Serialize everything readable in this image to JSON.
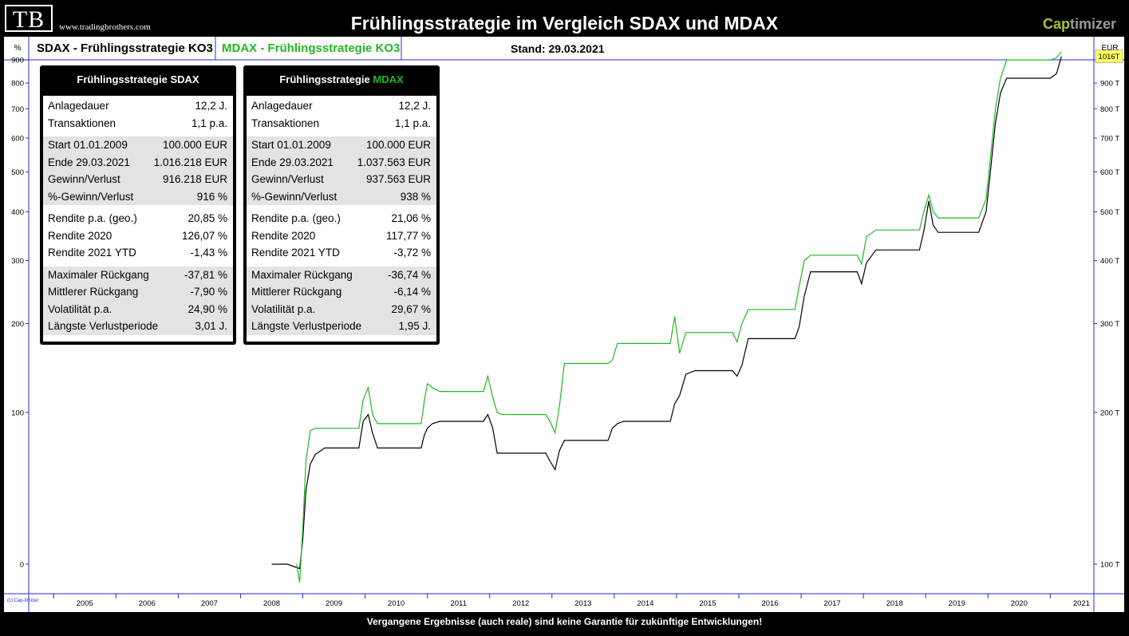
{
  "header": {
    "logo": "TB",
    "site": "www.tradingbrothers.com",
    "title": "Frühlingsstrategie im Vergleich SDAX und MDAX",
    "brand_part1": "Cap",
    "brand_part2": "timizer"
  },
  "legend": {
    "left_unit": "%",
    "sdax_label": "SDAX - Frühlingsstrategie KO3",
    "mdax_label": "MDAX - Frühlingsstrategie KO3",
    "stand": "Stand: 29.03.2021",
    "right_unit": "EUR"
  },
  "boxes": [
    {
      "title_prefix": "Frühlingsstrategie SDAX",
      "title_accent": "",
      "groups": [
        {
          "shade": false,
          "rows": [
            [
              "Anlagedauer",
              "12,2 J."
            ],
            [
              "Transaktionen",
              "1,1 p.a."
            ]
          ]
        },
        {
          "shade": true,
          "rows": [
            [
              "Start  01.01.2009",
              "100.000 EUR"
            ],
            [
              "Ende  29.03.2021",
              "1.016.218 EUR"
            ],
            [
              "Gewinn/Verlust",
              "916.218 EUR"
            ],
            [
              "%-Gewinn/Verlust",
              "916 %"
            ]
          ]
        },
        {
          "shade": false,
          "rows": [
            [
              "Rendite p.a. (geo.)",
              "20,85 %"
            ],
            [
              "Rendite 2020",
              "126,07 %"
            ],
            [
              "Rendite 2021 YTD",
              "-1,43 %"
            ]
          ]
        },
        {
          "shade": true,
          "rows": [
            [
              "Maximaler Rückgang",
              "-37,81 %"
            ],
            [
              "Mittlerer Rückgang",
              "-7,90 %"
            ],
            [
              "Volatilität p.a.",
              "24,90 %"
            ],
            [
              "Längste Verlustperiode",
              "3,01 J."
            ]
          ]
        }
      ]
    },
    {
      "title_prefix": "Frühlingsstrategie ",
      "title_accent": "MDAX",
      "groups": [
        {
          "shade": false,
          "rows": [
            [
              "Anlagedauer",
              "12,2 J."
            ],
            [
              "Transaktionen",
              "1,1 p.a."
            ]
          ]
        },
        {
          "shade": true,
          "rows": [
            [
              "Start  01.01.2009",
              "100.000 EUR"
            ],
            [
              "Ende  29.03.2021",
              "1.037.563 EUR"
            ],
            [
              "Gewinn/Verlust",
              "937.563 EUR"
            ],
            [
              "%-Gewinn/Verlust",
              "938 %"
            ]
          ]
        },
        {
          "shade": false,
          "rows": [
            [
              "Rendite p.a. (geo.)",
              "21,06 %"
            ],
            [
              "Rendite 2020",
              "117,77 %"
            ],
            [
              "Rendite 2021 YTD",
              "-3,72 %"
            ]
          ]
        },
        {
          "shade": true,
          "rows": [
            [
              "Maximaler Rückgang",
              "-36,74 %"
            ],
            [
              "Mittlerer Rückgang",
              "-6,14 %"
            ],
            [
              "Volatilität p.a.",
              "29,67 %"
            ],
            [
              "Längste Verlustperiode",
              "1,95 J."
            ]
          ]
        }
      ]
    }
  ],
  "chart_data": {
    "type": "line",
    "y_scale": "log",
    "x_range": [
      2004.6,
      2021.7
    ],
    "right_axis_range": [
      90000,
      1150000
    ],
    "left_ticks": [
      "0",
      "100",
      "200",
      "300",
      "400",
      "500",
      "600",
      "700",
      "800",
      "900"
    ],
    "right_ticks": [
      {
        "label": "100 T",
        "value": 100000
      },
      {
        "label": "200 T",
        "value": 200000
      },
      {
        "label": "300 T",
        "value": 300000
      },
      {
        "label": "400 T",
        "value": 400000
      },
      {
        "label": "500 T",
        "value": 500000
      },
      {
        "label": "600 T",
        "value": 600000
      },
      {
        "label": "700 T",
        "value": 700000
      },
      {
        "label": "800 T",
        "value": 800000
      },
      {
        "label": "900 T",
        "value": 900000
      }
    ],
    "x_ticks": [
      "2005",
      "2006",
      "2007",
      "2008",
      "2009",
      "2010",
      "2011",
      "2012",
      "2013",
      "2014",
      "2015",
      "2016",
      "2017",
      "2018",
      "2019",
      "2020",
      "2021"
    ],
    "last_value_label": "1016T",
    "corner_label": "(c) Cap-timizer",
    "series": [
      {
        "name": "SDAX - Frühlingsstrategie KO3",
        "color": "#000000",
        "points": [
          [
            2008.5,
            100000
          ],
          [
            2008.75,
            100000
          ],
          [
            2008.95,
            98000
          ],
          [
            2009.0,
            112000
          ],
          [
            2009.05,
            140000
          ],
          [
            2009.12,
            158000
          ],
          [
            2009.2,
            165000
          ],
          [
            2009.35,
            170000
          ],
          [
            2009.9,
            170000
          ],
          [
            2009.97,
            192000
          ],
          [
            2010.05,
            198000
          ],
          [
            2010.12,
            182000
          ],
          [
            2010.2,
            170000
          ],
          [
            2010.9,
            170000
          ],
          [
            2010.95,
            180000
          ],
          [
            2011.0,
            186000
          ],
          [
            2011.08,
            190000
          ],
          [
            2011.2,
            192000
          ],
          [
            2011.9,
            192000
          ],
          [
            2011.97,
            198000
          ],
          [
            2012.05,
            186000
          ],
          [
            2012.12,
            166000
          ],
          [
            2012.2,
            166000
          ],
          [
            2012.9,
            166000
          ],
          [
            2012.97,
            160000
          ],
          [
            2013.05,
            154000
          ],
          [
            2013.12,
            168000
          ],
          [
            2013.2,
            176000
          ],
          [
            2013.9,
            176000
          ],
          [
            2013.97,
            186000
          ],
          [
            2014.05,
            190000
          ],
          [
            2014.15,
            192000
          ],
          [
            2014.9,
            192000
          ],
          [
            2014.97,
            208000
          ],
          [
            2015.05,
            216000
          ],
          [
            2015.15,
            238000
          ],
          [
            2015.3,
            242000
          ],
          [
            2015.9,
            242000
          ],
          [
            2015.97,
            236000
          ],
          [
            2016.05,
            248000
          ],
          [
            2016.15,
            280000
          ],
          [
            2016.9,
            280000
          ],
          [
            2016.97,
            296000
          ],
          [
            2017.05,
            340000
          ],
          [
            2017.15,
            380000
          ],
          [
            2017.9,
            380000
          ],
          [
            2017.97,
            360000
          ],
          [
            2018.05,
            396000
          ],
          [
            2018.2,
            420000
          ],
          [
            2018.9,
            420000
          ],
          [
            2018.97,
            458000
          ],
          [
            2019.05,
            525000
          ],
          [
            2019.12,
            470000
          ],
          [
            2019.2,
            455000
          ],
          [
            2019.85,
            455000
          ],
          [
            2019.97,
            500000
          ],
          [
            2020.05,
            620000
          ],
          [
            2020.12,
            750000
          ],
          [
            2020.2,
            860000
          ],
          [
            2020.3,
            920000
          ],
          [
            2021.0,
            920000
          ],
          [
            2021.1,
            940000
          ],
          [
            2021.18,
            1016218
          ]
        ]
      },
      {
        "name": "MDAX - Frühlingsstrategie KO3",
        "color": "#22b822",
        "points": [
          [
            2008.9,
            100000
          ],
          [
            2008.95,
            92000
          ],
          [
            2009.0,
            118000
          ],
          [
            2009.05,
            160000
          ],
          [
            2009.12,
            184000
          ],
          [
            2009.2,
            186000
          ],
          [
            2009.9,
            186000
          ],
          [
            2009.97,
            212000
          ],
          [
            2010.05,
            224000
          ],
          [
            2010.12,
            198000
          ],
          [
            2010.2,
            190000
          ],
          [
            2010.9,
            190000
          ],
          [
            2010.95,
            210000
          ],
          [
            2011.0,
            228000
          ],
          [
            2011.08,
            224000
          ],
          [
            2011.2,
            220000
          ],
          [
            2011.9,
            220000
          ],
          [
            2011.97,
            236000
          ],
          [
            2012.05,
            214000
          ],
          [
            2012.12,
            200000
          ],
          [
            2012.2,
            198000
          ],
          [
            2012.9,
            198000
          ],
          [
            2012.97,
            192000
          ],
          [
            2013.05,
            182000
          ],
          [
            2013.12,
            206000
          ],
          [
            2013.2,
            250000
          ],
          [
            2013.9,
            250000
          ],
          [
            2013.97,
            254000
          ],
          [
            2014.05,
            274000
          ],
          [
            2014.15,
            274000
          ],
          [
            2014.9,
            274000
          ],
          [
            2014.97,
            310000
          ],
          [
            2015.05,
            262000
          ],
          [
            2015.15,
            288000
          ],
          [
            2015.9,
            288000
          ],
          [
            2015.97,
            276000
          ],
          [
            2016.05,
            300000
          ],
          [
            2016.15,
            320000
          ],
          [
            2016.9,
            320000
          ],
          [
            2016.97,
            356000
          ],
          [
            2017.05,
            400000
          ],
          [
            2017.15,
            410000
          ],
          [
            2017.9,
            410000
          ],
          [
            2017.97,
            394000
          ],
          [
            2018.05,
            446000
          ],
          [
            2018.2,
            460000
          ],
          [
            2018.9,
            460000
          ],
          [
            2018.97,
            500000
          ],
          [
            2019.05,
            540000
          ],
          [
            2019.12,
            500000
          ],
          [
            2019.2,
            486000
          ],
          [
            2019.85,
            486000
          ],
          [
            2019.97,
            530000
          ],
          [
            2020.05,
            660000
          ],
          [
            2020.12,
            800000
          ],
          [
            2020.2,
            920000
          ],
          [
            2020.3,
            1000000
          ],
          [
            2021.0,
            1000000
          ],
          [
            2021.1,
            1010000
          ],
          [
            2021.18,
            1037563
          ]
        ]
      }
    ]
  },
  "footer": "Vergangene Ergebnisse (auch reale) sind keine Garantie für zukünftige Entwicklungen!"
}
